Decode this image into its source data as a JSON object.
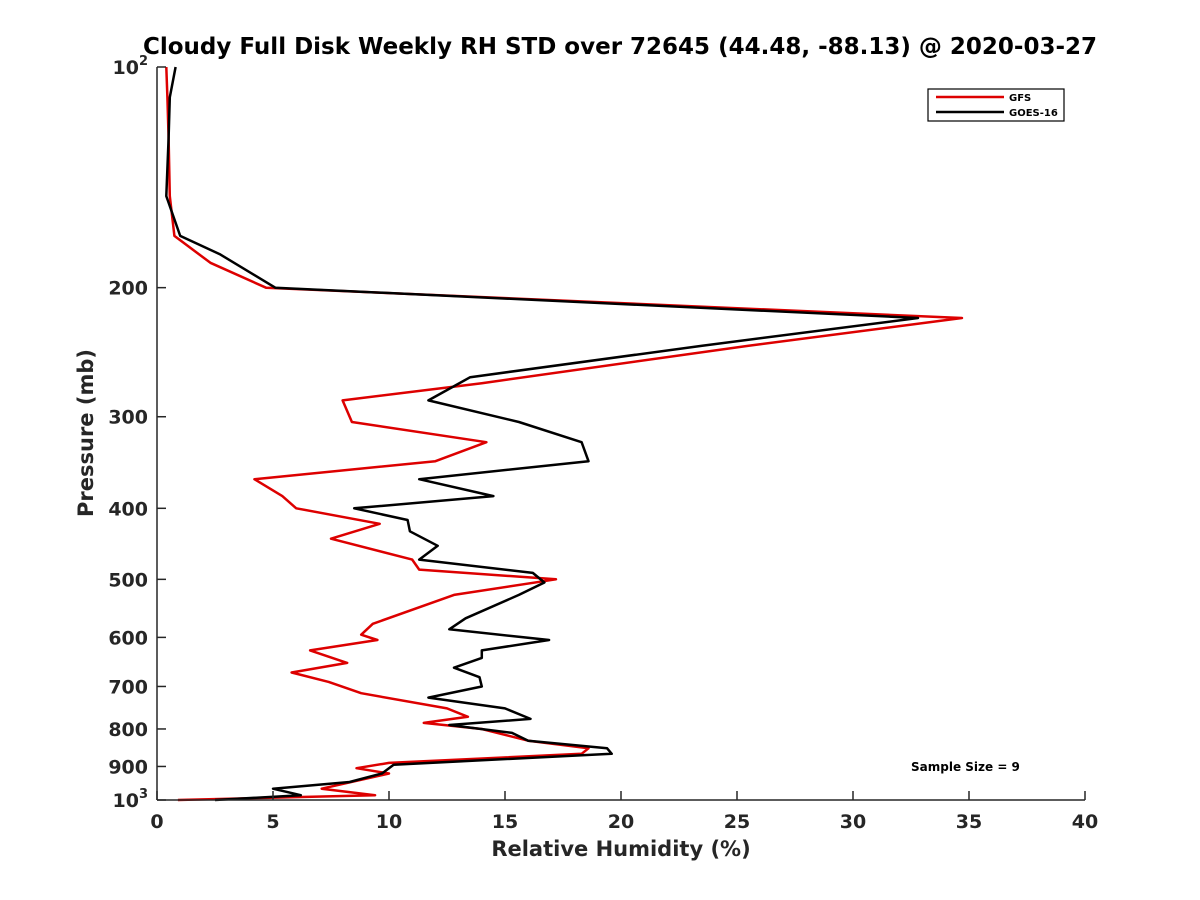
{
  "chart_data": {
    "type": "line",
    "title": "Cloudy Full Disk Weekly RH STD over 72645 (44.48, -88.13) @ 2020-03-27",
    "xlabel": "Relative Humidity (%)",
    "ylabel": "Pressure (mb)",
    "xlim": [
      0,
      40
    ],
    "ylim": [
      100,
      1000
    ],
    "y_scale": "log",
    "y_reversed": true,
    "x_ticks": [
      "0",
      "5",
      "10",
      "15",
      "20",
      "25",
      "30",
      "35",
      "40"
    ],
    "y_ticks": [
      {
        "value": 100,
        "base": "10",
        "exp": "2"
      },
      {
        "value": 200,
        "label": "200"
      },
      {
        "value": 300,
        "label": "300"
      },
      {
        "value": 400,
        "label": "400"
      },
      {
        "value": 500,
        "label": "500"
      },
      {
        "value": 600,
        "label": "600"
      },
      {
        "value": 700,
        "label": "700"
      },
      {
        "value": 800,
        "label": "800"
      },
      {
        "value": 900,
        "label": "900"
      },
      {
        "value": 1000,
        "base": "10",
        "exp": "3"
      }
    ],
    "grid": false,
    "legend_position": "top-right",
    "annotation": "Sample Size = 9",
    "series": [
      {
        "name": "GFS",
        "color": "#dd0000",
        "x": [
          0.4,
          0.45,
          0.5,
          0.55,
          0.75,
          2.3,
          4.7,
          34.7,
          25.5,
          14.0,
          8.0,
          8.4,
          14.2,
          12.0,
          4.2,
          5.4,
          6.0,
          9.6,
          7.5,
          11.0,
          11.3,
          17.2,
          12.8,
          9.3,
          8.8,
          9.5,
          6.6,
          8.2,
          5.8,
          7.4,
          8.8,
          12.5,
          13.4,
          11.5,
          14.0,
          16.0,
          18.6,
          18.3,
          10.0,
          8.6,
          10.0,
          7.1,
          9.4,
          0.9
        ],
        "y": [
          100,
          110,
          125,
          150,
          170,
          185,
          200,
          220,
          240,
          270,
          285,
          305,
          325,
          345,
          365,
          385,
          400,
          420,
          440,
          470,
          485,
          500,
          525,
          575,
          595,
          605,
          625,
          650,
          670,
          690,
          715,
          750,
          770,
          785,
          800,
          830,
          850,
          865,
          890,
          905,
          920,
          965,
          985,
          1000
        ]
      },
      {
        "name": "GOES-16",
        "color": "#000000",
        "x": [
          0.8,
          0.55,
          0.5,
          0.4,
          1.0,
          2.7,
          5.1,
          32.8,
          23.5,
          13.5,
          11.7,
          15.6,
          18.3,
          18.6,
          11.3,
          14.5,
          8.5,
          10.8,
          10.9,
          12.1,
          11.3,
          16.2,
          16.7,
          15.6,
          13.3,
          12.6,
          16.9,
          14.0,
          14.0,
          12.8,
          13.9,
          14.0,
          11.7,
          15.0,
          16.1,
          12.6,
          15.3,
          16.0,
          19.4,
          19.6,
          10.2,
          9.7,
          8.3,
          5.0,
          6.2,
          2.5
        ],
        "y": [
          100,
          110,
          125,
          150,
          170,
          180,
          200,
          220,
          240,
          265,
          285,
          305,
          325,
          345,
          365,
          385,
          400,
          415,
          430,
          450,
          470,
          490,
          505,
          525,
          565,
          585,
          605,
          625,
          640,
          660,
          680,
          700,
          725,
          750,
          775,
          790,
          810,
          830,
          850,
          865,
          895,
          920,
          945,
          965,
          985,
          1000
        ]
      }
    ]
  }
}
